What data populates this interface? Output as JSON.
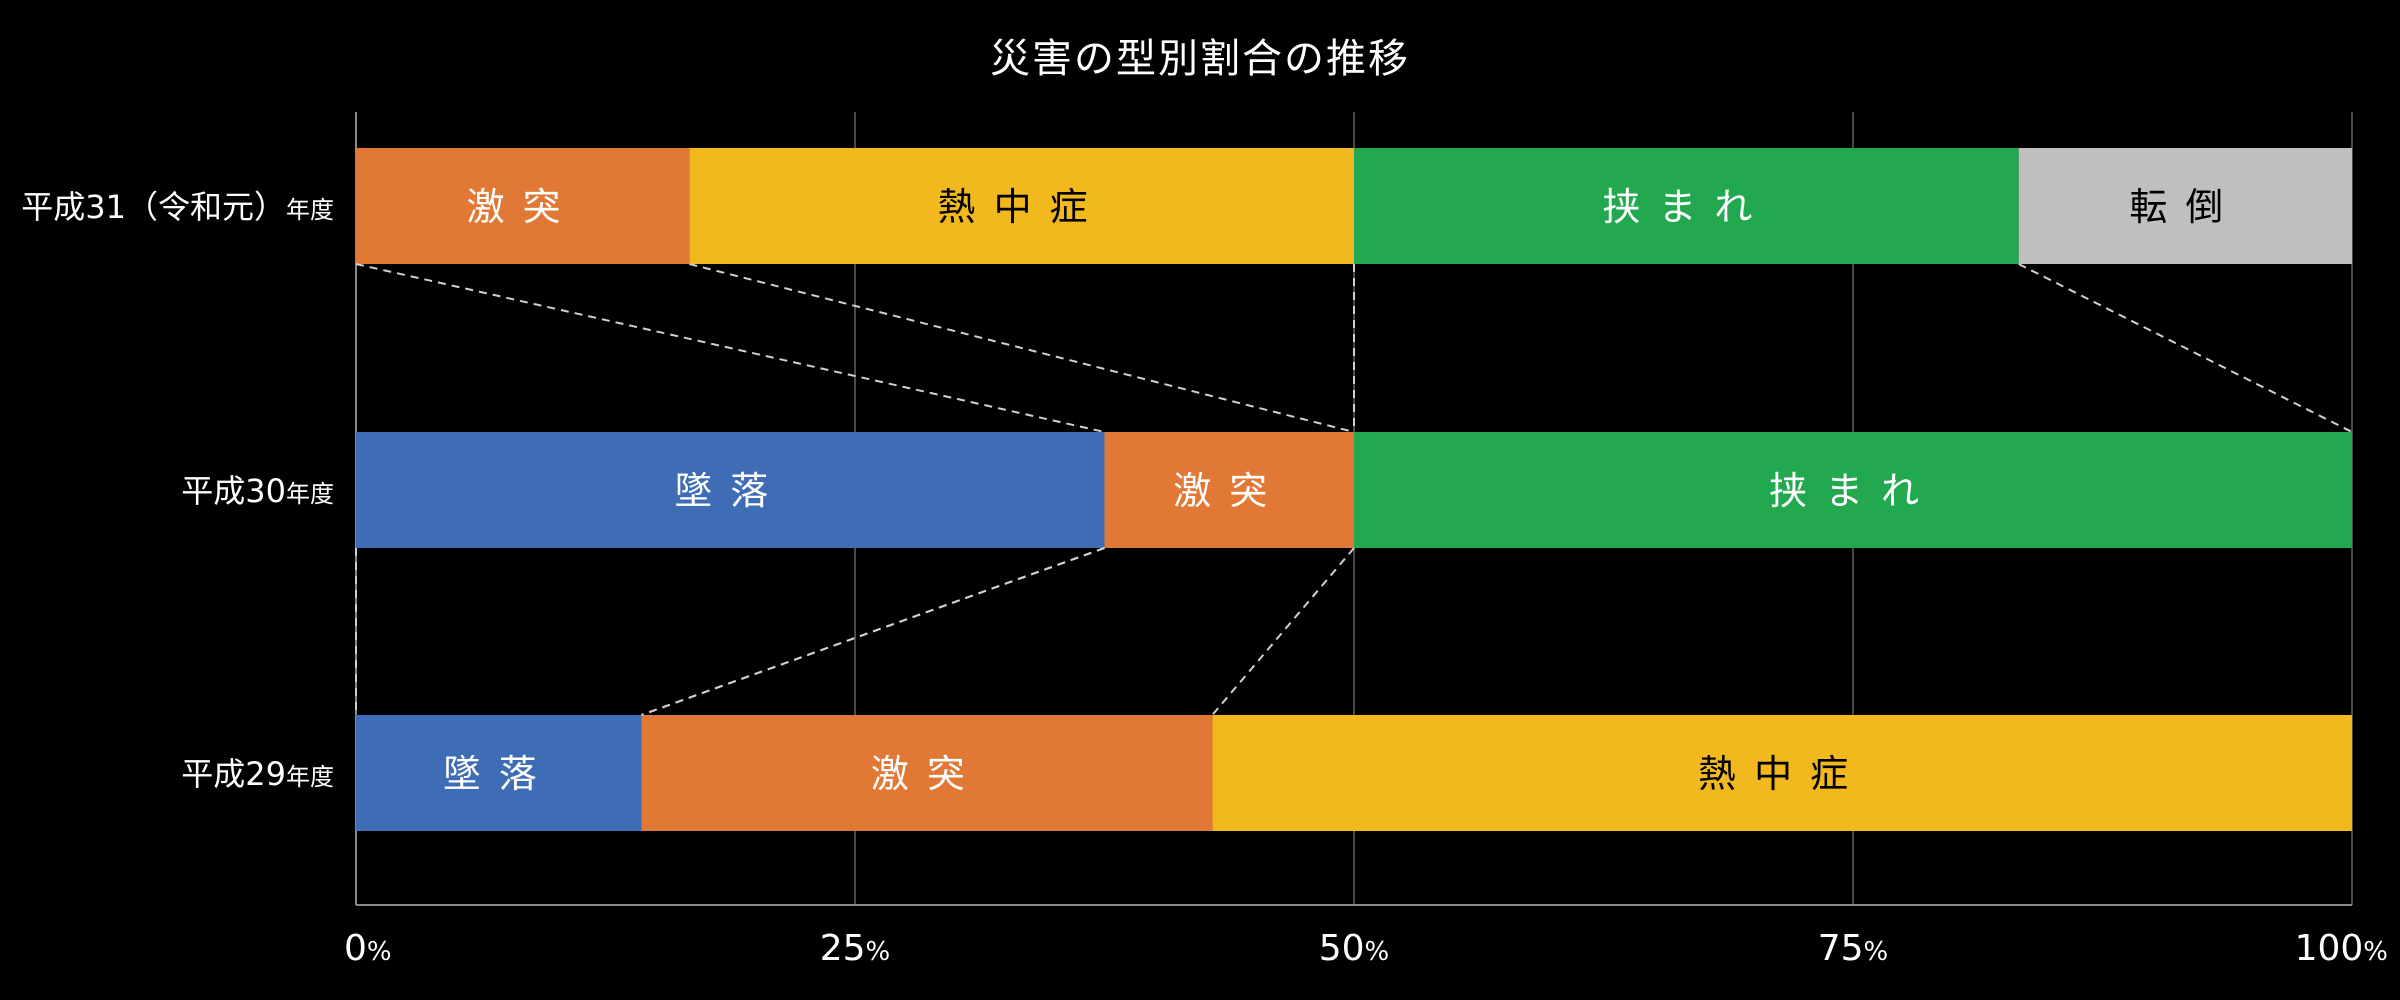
{
  "chart_data": {
    "type": "bar",
    "stacked": true,
    "orientation": "horizontal",
    "title": "災害の型別割合の推移",
    "xlim": [
      0,
      100
    ],
    "x_ticks": [
      {
        "num": "0",
        "unit": "%"
      },
      {
        "num": "25",
        "unit": "%"
      },
      {
        "num": "50",
        "unit": "%"
      },
      {
        "num": "75",
        "unit": "%"
      },
      {
        "num": "100",
        "unit": "%"
      }
    ],
    "grid": true,
    "rows": [
      {
        "label_main": "平成31（令和元）",
        "label_suffix": "年度",
        "segments": [
          {
            "name": "激突",
            "value": 16.7
          },
          {
            "name": "熱中症",
            "value": 33.3
          },
          {
            "name": "挟まれ",
            "value": 33.3
          },
          {
            "name": "転倒",
            "value": 16.7
          }
        ]
      },
      {
        "label_main": "平成30",
        "label_suffix": "年度",
        "segments": [
          {
            "name": "墜落",
            "value": 37.5
          },
          {
            "name": "激突",
            "value": 12.5
          },
          {
            "name": "挟まれ",
            "value": 50.0
          }
        ]
      },
      {
        "label_main": "平成29",
        "label_suffix": "年度",
        "segments": [
          {
            "name": "墜落",
            "value": 14.3
          },
          {
            "name": "激突",
            "value": 28.6
          },
          {
            "name": "熱中症",
            "value": 57.1
          }
        ]
      }
    ],
    "colors": {
      "墜落": "#3f6db5",
      "激突": "#e27835",
      "熱中症": "#f2b91e",
      "挟まれ": "#22a84e",
      "転倒": "#bfbfbf"
    },
    "label_colors": {
      "墜落": "#ffffff",
      "激突": "#ffffff",
      "熱中症": "#000000",
      "挟まれ": "#ffffff",
      "転倒": "#000000"
    }
  }
}
